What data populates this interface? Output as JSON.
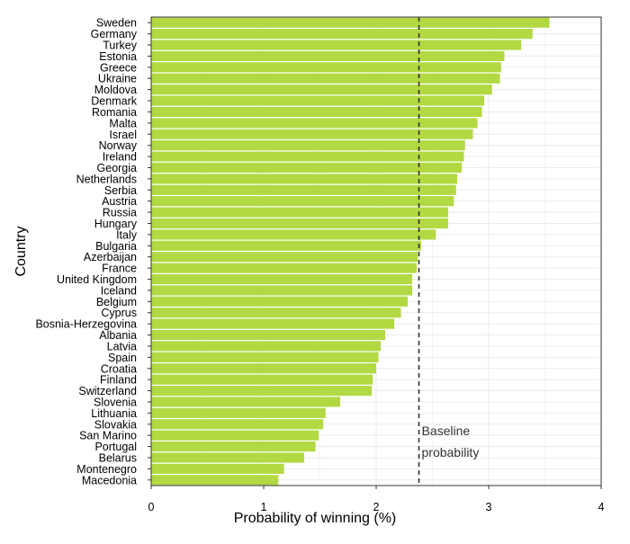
{
  "colors": {
    "bar": "#b2d942",
    "grid": "#ebebeb",
    "axis": "#333333",
    "text": "#000000",
    "baseline": "#333333"
  },
  "chart_data": {
    "type": "bar",
    "orientation": "horizontal",
    "title": "",
    "xlabel": "Probability of winning (%)",
    "ylabel": "Country",
    "xlim": [
      0,
      4
    ],
    "xticks": [
      0,
      1,
      2,
      3,
      4
    ],
    "grid": true,
    "baseline": {
      "value": 2.38,
      "label_line1": "Baseline",
      "label_line2": "probability"
    },
    "categories": [
      "Sweden",
      "Germany",
      "Turkey",
      "Estonia",
      "Greece",
      "Ukraine",
      "Moldova",
      "Denmark",
      "Romania",
      "Malta",
      "Israel",
      "Norway",
      "Ireland",
      "Georgia",
      "Netherlands",
      "Serbia",
      "Austria",
      "Russia",
      "Hungary",
      "Italy",
      "Bulgaria",
      "Azerbaijan",
      "France",
      "United Kingdom",
      "Iceland",
      "Belgium",
      "Cyprus",
      "Bosnia-Herzegovina",
      "Albania",
      "Latvia",
      "Spain",
      "Croatia",
      "Finland",
      "Switzerland",
      "Slovenia",
      "Lithuania",
      "Slovakia",
      "San Marino",
      "Portugal",
      "Belarus",
      "Montenegro",
      "Macedonia"
    ],
    "values": [
      3.54,
      3.39,
      3.29,
      3.14,
      3.11,
      3.1,
      3.03,
      2.96,
      2.94,
      2.9,
      2.86,
      2.79,
      2.78,
      2.76,
      2.72,
      2.71,
      2.69,
      2.64,
      2.64,
      2.53,
      2.4,
      2.37,
      2.36,
      2.32,
      2.32,
      2.28,
      2.22,
      2.16,
      2.08,
      2.04,
      2.02,
      2.0,
      1.97,
      1.96,
      1.68,
      1.55,
      1.53,
      1.49,
      1.46,
      1.36,
      1.18,
      1.13
    ]
  }
}
